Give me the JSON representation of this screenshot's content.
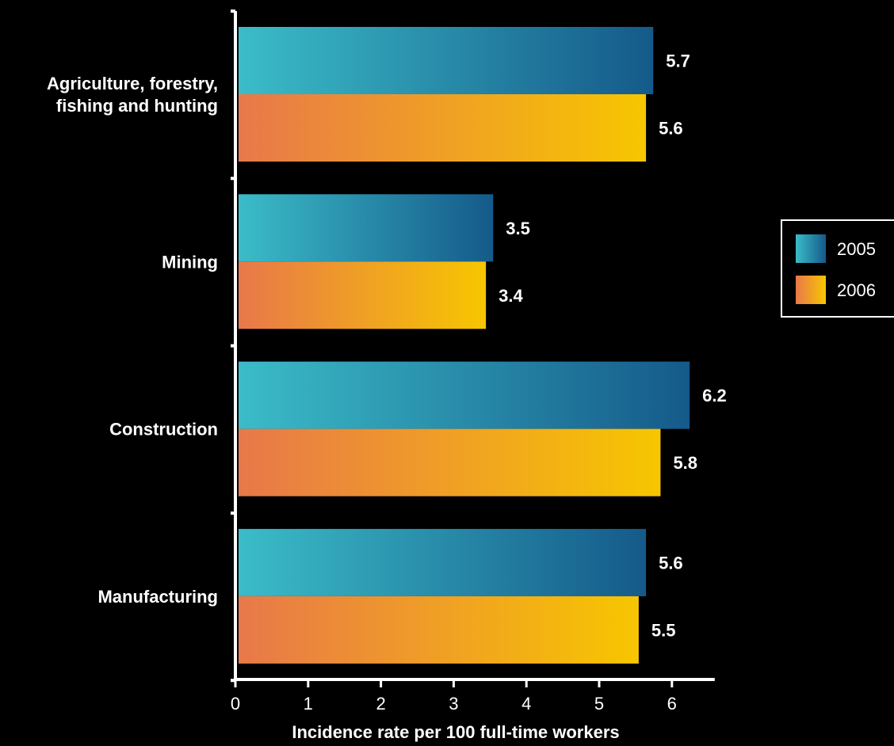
{
  "chart_data": {
    "type": "bar",
    "orientation": "horizontal",
    "categories": [
      [
        "Agriculture, forestry,",
        "fishing and hunting"
      ],
      [
        "Mining"
      ],
      [
        "Construction"
      ],
      [
        "Manufacturing"
      ]
    ],
    "series": [
      {
        "name": "2005",
        "values": [
          5.7,
          3.5,
          6.2,
          5.6
        ],
        "colors": [
          "#3bbcc8",
          "#155a8a"
        ]
      },
      {
        "name": "2006",
        "values": [
          5.6,
          3.4,
          5.8,
          5.5
        ],
        "colors": [
          "#e8784a",
          "#f7c600"
        ]
      }
    ],
    "xlabel": "Incidence rate per 100 full-time workers",
    "xlim": [
      0,
      6
    ],
    "xticks": [
      "0",
      "1",
      "2",
      "3",
      "4",
      "5",
      "6"
    ],
    "grid": false,
    "legend_position": "right",
    "background": "#000000",
    "text_color": "#ffffff"
  }
}
